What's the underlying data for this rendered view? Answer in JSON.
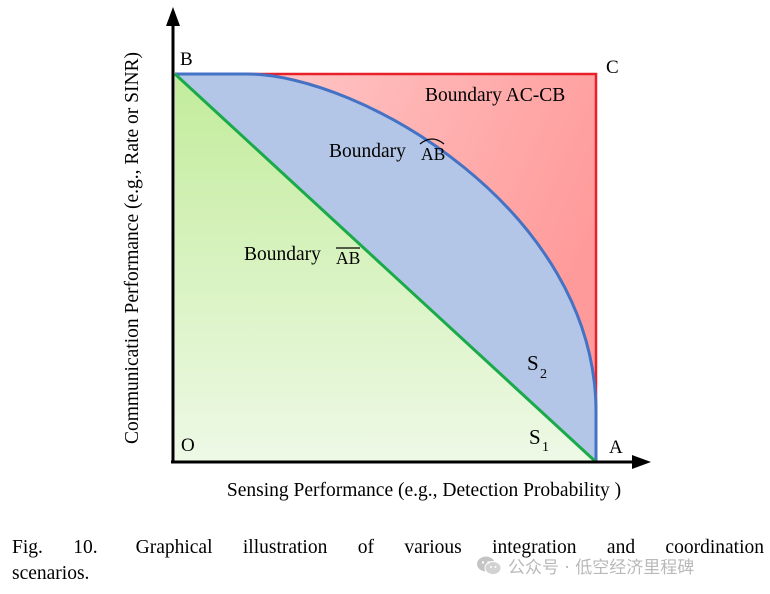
{
  "figure": {
    "y_axis_label": "Communication Performance (e.g., Rate or SINR)",
    "x_axis_label": "Sensing Performance (e.g., Detection Probability )",
    "points": {
      "origin": "O",
      "a": "A",
      "b": "B",
      "c": "C"
    },
    "region_labels": {
      "s1": {
        "base": "S",
        "sub": "1"
      },
      "s2": {
        "base": "S",
        "sub": "2"
      }
    },
    "boundaries": {
      "line": {
        "prefix": "Boundary",
        "arc_text": "AB"
      },
      "arc": {
        "prefix": "Boundary",
        "arc_text": "AB"
      },
      "corner": "Boundary AC-CB"
    },
    "colors": {
      "axis": "#000000",
      "line_boundary": "#1aaa4a",
      "arc_boundary": "#4472c4",
      "corner_boundary": "#e8202a",
      "region_s1": "#c9eeaa",
      "region_s2": "#b4c6e7",
      "region_corner": "#ffb3b3"
    }
  },
  "caption": {
    "fig_label": "Fig. 10.",
    "line1": "Graphical illustration of various integration and coordination",
    "line2": "scenarios."
  },
  "watermark": {
    "icon": "wechat-icon",
    "text": "公众号 · 低空经济里程碑"
  }
}
